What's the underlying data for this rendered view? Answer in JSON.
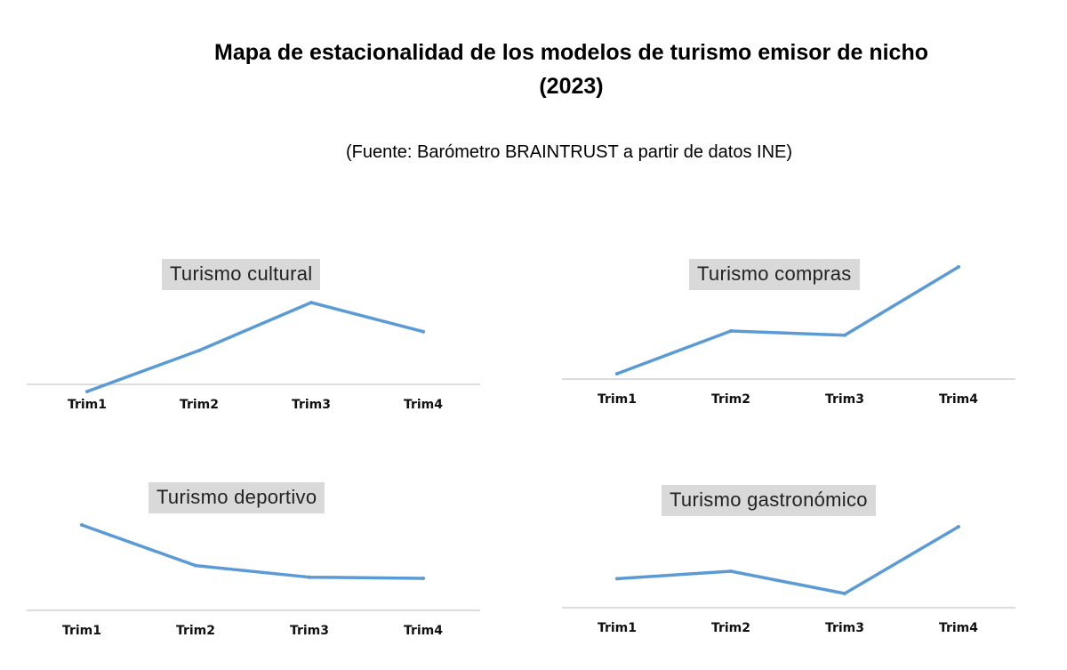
{
  "title_line1": "Mapa de estacionalidad de los modelos de turismo emisor de nicho",
  "title_line2": "(2023)",
  "subtitle": "(Fuente: Barómetro BRAINTRUST a partir de datos INE)",
  "colors": {
    "line": "#5b9bd5",
    "axis": "#d0d0d0",
    "title_bg": "#d9d9d9"
  },
  "chart_data": [
    {
      "type": "line",
      "title": "Turismo cultural",
      "categories": [
        "Trim1",
        "Trim2",
        "Trim3",
        "Trim4"
      ],
      "values": [
        1.0,
        3.4,
        6.2,
        4.5
      ],
      "ylim": [
        0,
        10
      ]
    },
    {
      "type": "line",
      "title": "Turismo compras",
      "categories": [
        "Trim1",
        "Trim2",
        "Trim3",
        "Trim4"
      ],
      "values": [
        5.5,
        6.5,
        6.4,
        8.0
      ],
      "ylim": [
        0,
        10
      ]
    },
    {
      "type": "line",
      "title": "Turismo deportivo",
      "categories": [
        "Trim1",
        "Trim2",
        "Trim3",
        "Trim4"
      ],
      "values": [
        8.5,
        5.0,
        4.0,
        3.9
      ],
      "ylim": [
        0,
        10
      ]
    },
    {
      "type": "line",
      "title": "Turismo gastronómico",
      "categories": [
        "Trim1",
        "Trim2",
        "Trim3",
        "Trim4"
      ],
      "values": [
        3.6,
        4.3,
        2.2,
        8.5
      ],
      "ylim": [
        0,
        10
      ]
    }
  ]
}
